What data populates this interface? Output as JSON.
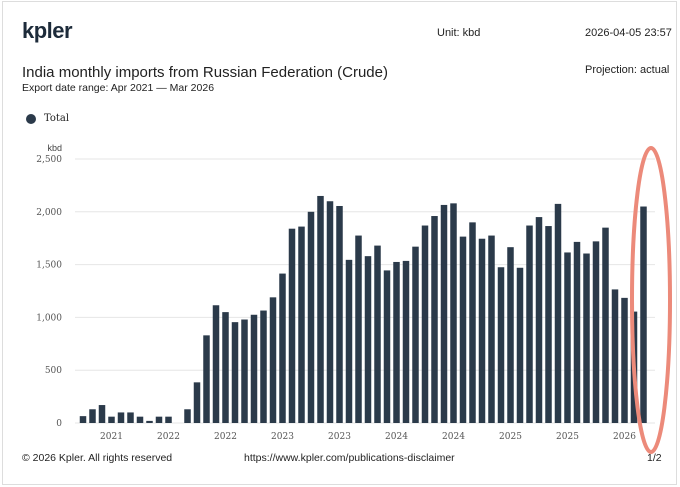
{
  "header": {
    "logo": "kpler",
    "unit": "Unit: kbd",
    "timestamp": "2026-04-05 23:57",
    "title": "India monthly imports from Russian Federation (Crude)",
    "subtitle": "Export date range: Apr 2021 — Mar 2026",
    "projection": "Projection: actual"
  },
  "footer": {
    "copyright": "© 2026 Kpler. All rights reserved",
    "url": "https://www.kpler.com/publications-disclaimer",
    "page": "1/2"
  },
  "colors": {
    "bar": "#2b3a4a",
    "highlight": "#ec8a7a"
  },
  "chart_data": {
    "type": "bar",
    "title": "India monthly imports from Russian Federation (Crude)",
    "ylabel": "kbd",
    "ylim": [
      0,
      2500
    ],
    "yticks": [
      "0",
      "500",
      "1,000",
      "1,500",
      "2,000",
      "2,500"
    ],
    "xtick_labels": [
      "2021",
      "2022",
      "2022",
      "2023",
      "2023",
      "2024",
      "2024",
      "2025",
      "2025",
      "2026"
    ],
    "grid": true,
    "legend_position": "top-left",
    "categories": [
      "Apr 2021",
      "May 2021",
      "Jun 2021",
      "Jul 2021",
      "Aug 2021",
      "Sep 2021",
      "Oct 2021",
      "Nov 2021",
      "Dec 2021",
      "Jan 2022",
      "Feb 2022",
      "Mar 2022",
      "Apr 2022",
      "May 2022",
      "Jun 2022",
      "Jul 2022",
      "Aug 2022",
      "Sep 2022",
      "Oct 2022",
      "Nov 2022",
      "Dec 2022",
      "Jan 2023",
      "Feb 2023",
      "Mar 2023",
      "Apr 2023",
      "May 2023",
      "Jun 2023",
      "Jul 2023",
      "Aug 2023",
      "Sep 2023",
      "Oct 2023",
      "Nov 2023",
      "Dec 2023",
      "Jan 2024",
      "Feb 2024",
      "Mar 2024",
      "Apr 2024",
      "May 2024",
      "Jun 2024",
      "Jul 2024",
      "Aug 2024",
      "Sep 2024",
      "Oct 2024",
      "Nov 2024",
      "Dec 2024",
      "Jan 2025",
      "Feb 2025",
      "Mar 2025",
      "Apr 2025",
      "May 2025",
      "Jun 2025",
      "Jul 2025",
      "Aug 2025",
      "Sep 2025",
      "Oct 2025",
      "Nov 2025",
      "Dec 2025",
      "Jan 2026",
      "Feb 2026",
      "Mar 2026"
    ],
    "series": [
      {
        "name": "Total",
        "values": [
          65,
          130,
          170,
          60,
          100,
          100,
          60,
          20,
          60,
          60,
          0,
          130,
          385,
          830,
          1115,
          1050,
          955,
          980,
          1025,
          1065,
          1190,
          1415,
          1840,
          1860,
          2000,
          2150,
          2100,
          2055,
          1545,
          1775,
          1580,
          1680,
          1445,
          1525,
          1535,
          1670,
          1870,
          1960,
          2065,
          2080,
          1765,
          1900,
          1745,
          1775,
          1475,
          1665,
          1470,
          1870,
          1950,
          1865,
          2075,
          1615,
          1715,
          1605,
          1720,
          1850,
          1265,
          1185,
          1055,
          2050
        ]
      }
    ]
  }
}
